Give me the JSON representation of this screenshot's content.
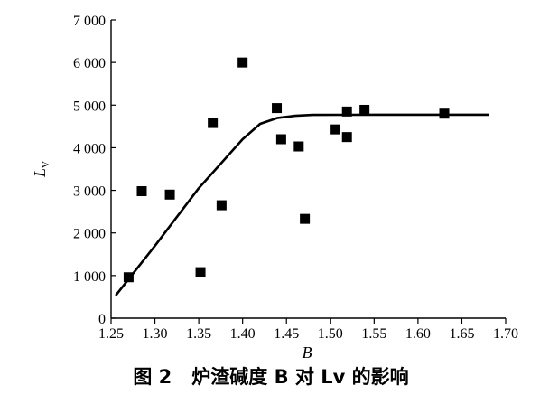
{
  "chart_data": {
    "type": "scatter",
    "xlabel": "B",
    "ylabel": "L",
    "ylabel_subscript": "V",
    "xlim": [
      1.25,
      1.7
    ],
    "ylim": [
      0,
      7000
    ],
    "x_ticks": [
      1.25,
      1.3,
      1.35,
      1.4,
      1.45,
      1.5,
      1.55,
      1.6,
      1.65,
      1.7
    ],
    "x_tick_labels": [
      "1.25",
      "1.30",
      "1.35",
      "1.40",
      "1.45",
      "1.50",
      "1.55",
      "1.60",
      "1.65",
      "1.70"
    ],
    "y_ticks": [
      0,
      1000,
      2000,
      3000,
      4000,
      5000,
      6000,
      7000
    ],
    "y_tick_labels": [
      "0",
      "1 000",
      "2 000",
      "3 000",
      "4 000",
      "5 000",
      "6 000",
      "7 000"
    ],
    "grid": false,
    "legend": "none",
    "series": [
      {
        "marker": "square",
        "color": "#000000",
        "points": [
          {
            "x": 1.27,
            "y": 960
          },
          {
            "x": 1.285,
            "y": 2980
          },
          {
            "x": 1.317,
            "y": 2900
          },
          {
            "x": 1.352,
            "y": 1080
          },
          {
            "x": 1.366,
            "y": 4580
          },
          {
            "x": 1.376,
            "y": 2650
          },
          {
            "x": 1.4,
            "y": 6000
          },
          {
            "x": 1.439,
            "y": 4930
          },
          {
            "x": 1.444,
            "y": 4200
          },
          {
            "x": 1.464,
            "y": 4030
          },
          {
            "x": 1.471,
            "y": 2330
          },
          {
            "x": 1.505,
            "y": 4430
          },
          {
            "x": 1.519,
            "y": 4850
          },
          {
            "x": 1.519,
            "y": 4250
          },
          {
            "x": 1.539,
            "y": 4890
          },
          {
            "x": 1.63,
            "y": 4800
          }
        ]
      },
      {
        "type": "line",
        "role": "fitted-curve",
        "color": "#000000",
        "points": [
          {
            "x": 1.256,
            "y": 550
          },
          {
            "x": 1.3,
            "y": 1700
          },
          {
            "x": 1.35,
            "y": 3050
          },
          {
            "x": 1.4,
            "y": 4200
          },
          {
            "x": 1.42,
            "y": 4560
          },
          {
            "x": 1.44,
            "y": 4700
          },
          {
            "x": 1.46,
            "y": 4750
          },
          {
            "x": 1.48,
            "y": 4770
          },
          {
            "x": 1.55,
            "y": 4775
          },
          {
            "x": 1.62,
            "y": 4775
          },
          {
            "x": 1.68,
            "y": 4775
          }
        ]
      }
    ]
  },
  "caption": {
    "number": "图 2",
    "text": "炉渣碱度 B 对 Lv 的影响"
  }
}
